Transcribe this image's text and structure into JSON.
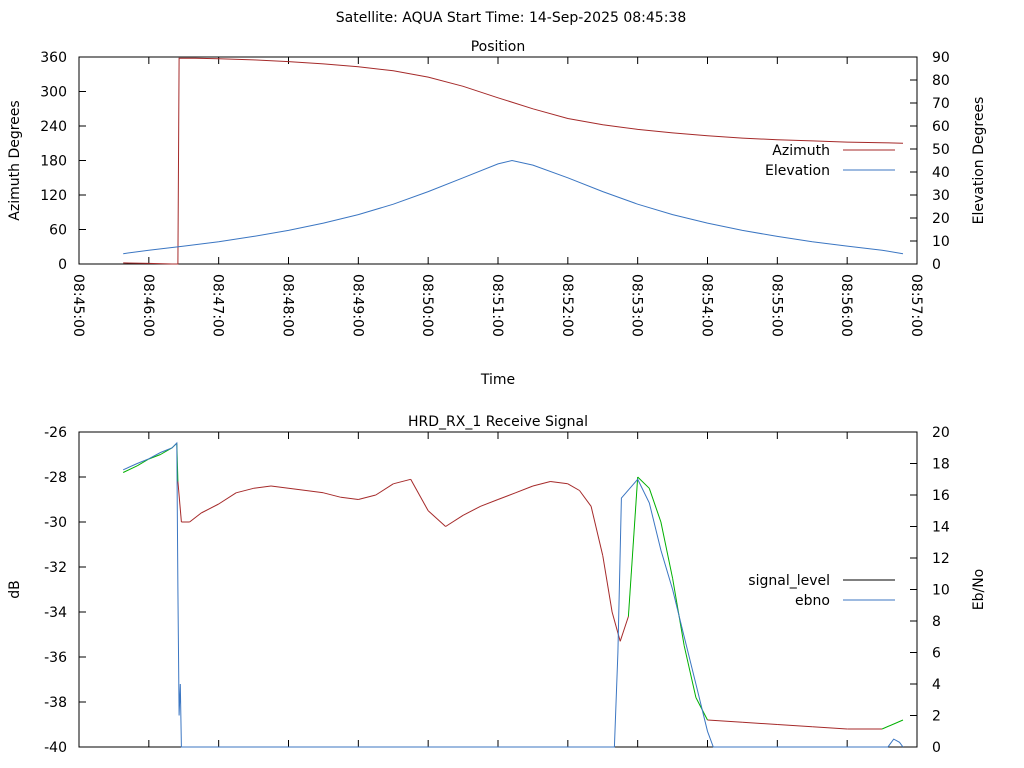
{
  "header": {
    "title": "Satellite: AQUA    Start Time: 14-Sep-2025 08:45:38"
  },
  "chart_data": [
    {
      "type": "line",
      "title": "Position",
      "xlabel": "Time",
      "ylabel": "Azimuth Degrees",
      "y2label": "Elevation Degrees",
      "x_ticks": [
        "08:45:00",
        "08:46:00",
        "08:47:00",
        "08:48:00",
        "08:49:00",
        "08:50:00",
        "08:51:00",
        "08:52:00",
        "08:53:00",
        "08:54:00",
        "08:55:00",
        "08:56:00",
        "08:57:00"
      ],
      "xlim": [
        "08:45:00",
        "08:57:00"
      ],
      "ylim": [
        0,
        360
      ],
      "y_ticks": [
        0,
        60,
        120,
        180,
        240,
        300,
        360
      ],
      "y2lim": [
        0,
        90
      ],
      "y2_ticks": [
        0,
        10,
        20,
        30,
        40,
        50,
        60,
        70,
        80,
        90
      ],
      "legend_position": "right",
      "colors": {
        "azimuth": "#a52a2a",
        "elevation": "#3b76c2"
      },
      "series": [
        {
          "name": "Azimuth",
          "axis": "y",
          "x": [
            "08:45:38",
            "08:46:00",
            "08:46:20",
            "08:46:25",
            "08:46:26",
            "08:46:40",
            "08:47:00",
            "08:47:30",
            "08:48:00",
            "08:48:30",
            "08:49:00",
            "08:49:30",
            "08:50:00",
            "08:50:30",
            "08:51:00",
            "08:51:30",
            "08:52:00",
            "08:52:30",
            "08:53:00",
            "08:53:30",
            "08:54:00",
            "08:54:30",
            "08:55:00",
            "08:55:30",
            "08:56:00",
            "08:56:30",
            "08:56:48"
          ],
          "values": [
            2,
            1,
            0,
            0,
            358,
            358,
            357,
            355,
            352,
            348,
            343,
            336,
            325,
            309,
            289,
            270,
            253,
            242,
            234,
            228,
            223,
            219,
            216,
            214,
            212,
            211,
            210
          ]
        },
        {
          "name": "Elevation",
          "axis": "y2",
          "x": [
            "08:45:38",
            "08:46:00",
            "08:46:30",
            "08:47:00",
            "08:47:30",
            "08:48:00",
            "08:48:30",
            "08:49:00",
            "08:49:30",
            "08:50:00",
            "08:50:30",
            "08:51:00",
            "08:51:12",
            "08:51:30",
            "08:52:00",
            "08:52:30",
            "08:53:00",
            "08:53:30",
            "08:54:00",
            "08:54:30",
            "08:55:00",
            "08:55:30",
            "08:56:00",
            "08:56:30",
            "08:56:48"
          ],
          "values": [
            4.5,
            6,
            7.8,
            9.7,
            12,
            14.6,
            17.8,
            21.5,
            26,
            31.5,
            37.5,
            43.5,
            45,
            43,
            37.5,
            31.5,
            26,
            21.5,
            17.8,
            14.6,
            12,
            9.7,
            7.8,
            6,
            4.5
          ]
        }
      ]
    },
    {
      "type": "line",
      "title": "HRD_RX_1 Receive Signal",
      "xlabel": "",
      "ylabel": "dB",
      "y2label": "Eb/No",
      "xlim": [
        "08:45:00",
        "08:57:00"
      ],
      "ylim": [
        -40,
        -26
      ],
      "y_ticks": [
        -40,
        -38,
        -36,
        -34,
        -32,
        -30,
        -28,
        -26
      ],
      "y2lim": [
        0,
        20
      ],
      "y2_ticks": [
        0,
        2,
        4,
        6,
        8,
        10,
        12,
        14,
        16,
        18,
        20
      ],
      "legend_position": "right",
      "legend_line_color": "#000000",
      "colors": {
        "signal_level": "#a52a2a",
        "signal_level_high": "#00b000",
        "ebno": "#3b76c2"
      },
      "series": [
        {
          "name": "signal_level",
          "axis": "y",
          "x": [
            "08:45:38",
            "08:45:50",
            "08:46:00",
            "08:46:10",
            "08:46:20",
            "08:46:24",
            "08:46:25",
            "08:46:28",
            "08:46:35",
            "08:46:45",
            "08:47:00",
            "08:47:15",
            "08:47:30",
            "08:47:45",
            "08:48:00",
            "08:48:15",
            "08:48:30",
            "08:48:45",
            "08:49:00",
            "08:49:15",
            "08:49:30",
            "08:49:45",
            "08:50:00",
            "08:50:15",
            "08:50:30",
            "08:50:45",
            "08:51:00",
            "08:51:15",
            "08:51:30",
            "08:51:45",
            "08:52:00",
            "08:52:10",
            "08:52:20",
            "08:52:30",
            "08:52:38",
            "08:52:45",
            "08:52:52",
            "08:53:00",
            "08:53:10",
            "08:53:20",
            "08:53:30",
            "08:53:40",
            "08:53:50",
            "08:54:00",
            "08:54:30",
            "08:55:00",
            "08:55:30",
            "08:56:00",
            "08:56:30",
            "08:56:48"
          ],
          "values": [
            -27.8,
            -27.5,
            -27.2,
            -27.0,
            -26.7,
            -26.5,
            -28.2,
            -30.0,
            -30.0,
            -29.6,
            -29.2,
            -28.7,
            -28.5,
            -28.4,
            -28.5,
            -28.6,
            -28.7,
            -28.9,
            -29.0,
            -28.8,
            -28.3,
            -28.1,
            -29.5,
            -30.2,
            -29.7,
            -29.3,
            -29.0,
            -28.7,
            -28.4,
            -28.2,
            -28.3,
            -28.6,
            -29.3,
            -31.5,
            -34.0,
            -35.3,
            -34.2,
            -28.0,
            -28.5,
            -30.0,
            -32.5,
            -35.5,
            -37.8,
            -38.8,
            -38.9,
            -39.0,
            -39.1,
            -39.2,
            -39.2,
            -38.8
          ]
        },
        {
          "name": "ebno",
          "axis": "y2",
          "x": [
            "08:45:38",
            "08:45:50",
            "08:46:00",
            "08:46:10",
            "08:46:20",
            "08:46:24",
            "08:46:25",
            "08:46:26",
            "08:46:27",
            "08:46:28",
            "08:46:29",
            "08:52:40",
            "08:52:43",
            "08:52:46",
            "08:53:00",
            "08:53:10",
            "08:53:20",
            "08:53:30",
            "08:53:40",
            "08:53:50",
            "08:54:00",
            "08:54:05",
            "08:56:35",
            "08:56:40",
            "08:56:45",
            "08:56:48"
          ],
          "values": [
            17.6,
            18,
            18.3,
            18.7,
            19.0,
            19.3,
            10,
            2,
            4,
            0,
            0,
            0,
            6,
            15.8,
            17.0,
            15.5,
            12.5,
            10,
            7,
            4,
            1,
            0,
            0,
            0.5,
            0.3,
            0
          ]
        }
      ]
    }
  ]
}
